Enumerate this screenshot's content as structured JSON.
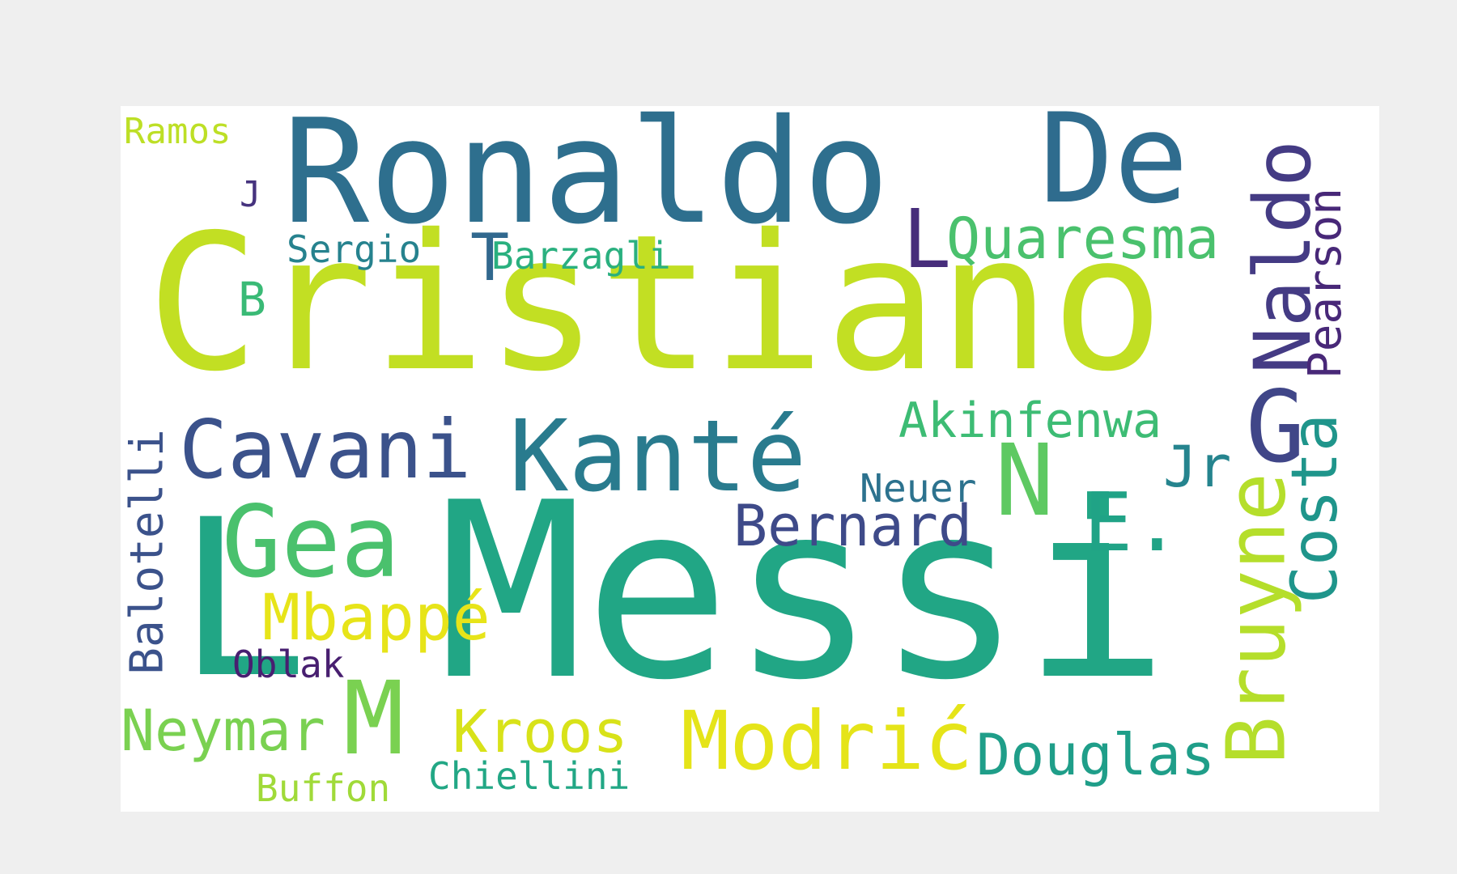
{
  "words": [
    {
      "id": "messi",
      "text": "Messi",
      "color": "#21a685"
    },
    {
      "id": "cristiano",
      "text": "Cristiano",
      "color": "#c2df23"
    },
    {
      "id": "ronaldo",
      "text": "Ronaldo",
      "color": "#2e6f8e"
    },
    {
      "id": "de",
      "text": "De",
      "color": "#2f6c8e"
    },
    {
      "id": "l-large",
      "text": "L",
      "color": "#21a685"
    },
    {
      "id": "naldo",
      "text": "Naldo",
      "color": "#443b84"
    },
    {
      "id": "kante",
      "text": "Kanté",
      "color": "#297b8e"
    },
    {
      "id": "cavani",
      "text": "Cavani",
      "color": "#3b528b"
    },
    {
      "id": "gea",
      "text": "Gea",
      "color": "#4ac16d"
    },
    {
      "id": "g",
      "text": "G",
      "color": "#404688"
    },
    {
      "id": "n",
      "text": "N",
      "color": "#5ec962"
    },
    {
      "id": "bruyne",
      "text": "Bruyne",
      "color": "#b5de2b"
    },
    {
      "id": "pearson",
      "text": "Pearson",
      "color": "#482878"
    },
    {
      "id": "costa",
      "text": "Costa",
      "color": "#1f958b"
    },
    {
      "id": "quaresma",
      "text": "Quaresma",
      "color": "#4ac16d"
    },
    {
      "id": "l-small",
      "text": "L",
      "color": "#472d7b"
    },
    {
      "id": "akinfenwa",
      "text": "Akinfenwa",
      "color": "#3dbc74"
    },
    {
      "id": "jr",
      "text": "Jr",
      "color": "#25848e"
    },
    {
      "id": "neuer",
      "text": "Neuer",
      "color": "#2c728e"
    },
    {
      "id": "bernard",
      "text": "Bernard",
      "color": "#3e4a89"
    },
    {
      "id": "e-dot",
      "text": "E.",
      "color": "#20a386"
    },
    {
      "id": "mbappe",
      "text": "Mbappé",
      "color": "#e7e419"
    },
    {
      "id": "oblak",
      "text": "Oblak",
      "color": "#481f70"
    },
    {
      "id": "balotelli",
      "text": "Balotelli",
      "color": "#3b528b"
    },
    {
      "id": "m",
      "text": "M",
      "color": "#7ad151"
    },
    {
      "id": "neymar",
      "text": "Neymar",
      "color": "#7ad151"
    },
    {
      "id": "kroos",
      "text": "Kroos",
      "color": "#d8e219"
    },
    {
      "id": "modric",
      "text": "Modrić",
      "color": "#e5e419"
    },
    {
      "id": "douglas",
      "text": "Douglas",
      "color": "#1f9e89"
    },
    {
      "id": "buffon",
      "text": "Buffon",
      "color": "#a0da39"
    },
    {
      "id": "chiellini",
      "text": "Chiellini",
      "color": "#22a785"
    },
    {
      "id": "sergio",
      "text": "Sergio",
      "color": "#26828e"
    },
    {
      "id": "t",
      "text": "T",
      "color": "#31688e"
    },
    {
      "id": "barzagli",
      "text": "Barzagli",
      "color": "#2ab07f"
    },
    {
      "id": "b",
      "text": "B",
      "color": "#3aba76"
    },
    {
      "id": "j",
      "text": "J",
      "color": "#46337e"
    },
    {
      "id": "ramos",
      "text": "Ramos",
      "color": "#bddf26"
    }
  ]
}
